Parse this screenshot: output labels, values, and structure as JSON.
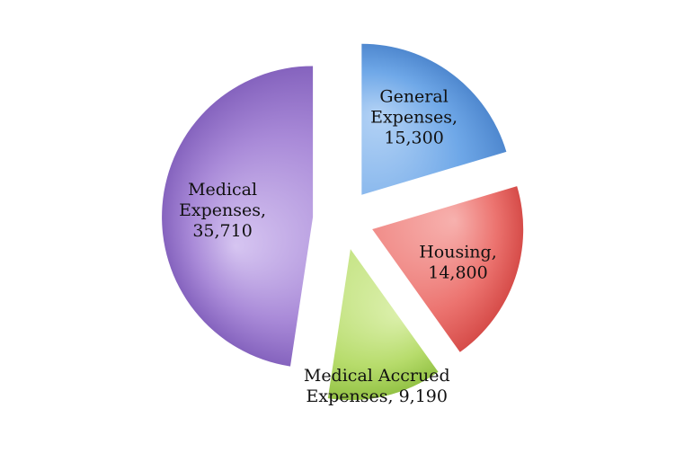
{
  "chart_data": {
    "type": "pie",
    "title": "",
    "exploded": true,
    "legend": "none",
    "slices": [
      {
        "category": "General Expenses",
        "value": 15300,
        "label_lines": [
          "General",
          "Expenses,",
          "15,300"
        ],
        "color": "#6fa8e8",
        "color_light": "#b3d2f5",
        "color_dark": "#4f88cf"
      },
      {
        "category": "Housing",
        "value": 14800,
        "label_lines": [
          "Housing,",
          "14,800"
        ],
        "color": "#ec7470",
        "color_light": "#f7b1ae",
        "color_dark": "#d64c49"
      },
      {
        "category": "Medical Accrued Expenses",
        "value": 9190,
        "label_lines": [
          "Medical Accrued",
          "Expenses, 9,190"
        ],
        "color": "#b7dc6c",
        "color_light": "#dcf0ad",
        "color_dark": "#93c245"
      },
      {
        "category": "Medical Expenses",
        "value": 35710,
        "label_lines": [
          "Medical",
          "Expenses,",
          "35,710"
        ],
        "color": "#a98ad8",
        "color_light": "#d6c5f1",
        "color_dark": "#8563be"
      }
    ]
  }
}
